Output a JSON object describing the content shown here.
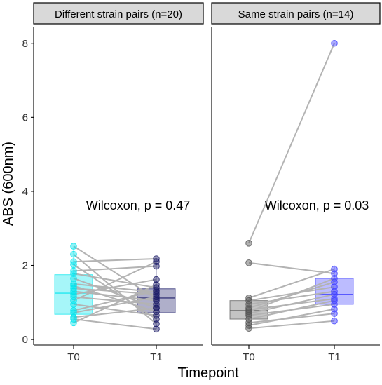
{
  "chart_data": {
    "type": "box",
    "xlabel": "Timepoint",
    "ylabel": "ABS (600nm)",
    "ylim": [
      -0.15,
      8.45
    ],
    "yticks": [
      0,
      2,
      4,
      6,
      8
    ],
    "categories": [
      "T0",
      "T1"
    ],
    "grid": false,
    "panels": [
      {
        "title": "Different strain pairs (n=20)",
        "annotation": "Wilcoxon, p = 0.47",
        "colors": {
          "T0": "#00e5ee",
          "T1": "#1a1a66"
        },
        "box": {
          "T0": {
            "q1": 0.68,
            "median": 1.25,
            "q3": 1.75,
            "whisker_low": 0.45,
            "whisker_high": 2.5
          },
          "T1": {
            "q1": 0.72,
            "median": 1.12,
            "q3": 1.37,
            "whisker_low": 0.28,
            "whisker_high": 2.2
          }
        },
        "pairs": [
          [
            2.52,
            1.1
          ],
          [
            2.3,
            0.42
          ],
          [
            2.1,
            2.18
          ],
          [
            2.02,
            0.55
          ],
          [
            1.85,
            1.98
          ],
          [
            1.78,
            1.4
          ],
          [
            1.65,
            0.85
          ],
          [
            1.5,
            1.28
          ],
          [
            1.45,
            0.75
          ],
          [
            1.38,
            1.22
          ],
          [
            1.3,
            1.05
          ],
          [
            1.22,
            1.62
          ],
          [
            1.15,
            0.95
          ],
          [
            1.05,
            2.1
          ],
          [
            0.95,
            0.65
          ],
          [
            0.78,
            1.32
          ],
          [
            0.72,
            1.15
          ],
          [
            0.6,
            0.85
          ],
          [
            0.55,
            0.28
          ],
          [
            0.45,
            1.48
          ]
        ]
      },
      {
        "title": "Same strain pairs (n=14)",
        "annotation": "Wilcoxon, p = 0.03",
        "colors": {
          "T0": "#555555",
          "T1": "#4040ff"
        },
        "box": {
          "T0": {
            "q1": 0.55,
            "median": 0.78,
            "q3": 1.05,
            "whisker_low": 0.3,
            "whisker_high": 1.1
          },
          "T1": {
            "q1": 0.95,
            "median": 1.22,
            "q3": 1.65,
            "whisker_low": 0.5,
            "whisker_high": 2.0
          }
        },
        "pairs": [
          [
            2.6,
            8.0
          ],
          [
            2.07,
            1.78
          ],
          [
            1.12,
            1.9
          ],
          [
            1.05,
            1.42
          ],
          [
            0.95,
            1.3
          ],
          [
            0.85,
            1.55
          ],
          [
            0.8,
            1.1
          ],
          [
            0.75,
            1.65
          ],
          [
            0.7,
            1.22
          ],
          [
            0.65,
            0.95
          ],
          [
            0.55,
            1.05
          ],
          [
            0.45,
            0.7
          ],
          [
            0.38,
            0.82
          ],
          [
            0.3,
            0.5
          ]
        ]
      }
    ]
  }
}
